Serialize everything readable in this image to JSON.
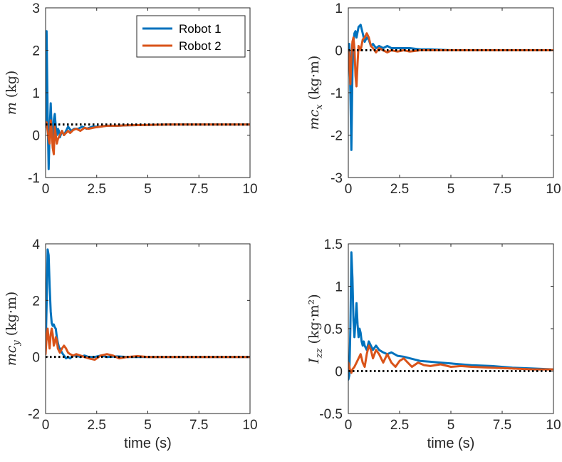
{
  "colors": {
    "robot1": "#0072BD",
    "robot2": "#D95319",
    "reference": "#000000",
    "axes": "#262626",
    "background": "#ffffff"
  },
  "legend": {
    "placement": "top-right",
    "entries": [
      "Robot 1",
      "Robot 2"
    ]
  },
  "chart_data": [
    {
      "type": "line",
      "id": "m",
      "title": "",
      "xlabel": "",
      "ylabel": {
        "sym": "m",
        "sub": "",
        "unit": "(kg)"
      },
      "xlim": [
        0,
        10
      ],
      "ylim": [
        -1,
        3
      ],
      "xticks": [
        "0",
        "2.5",
        "5",
        "7.5",
        "10"
      ],
      "yticks": [
        "-1",
        "0",
        "1",
        "2",
        "3"
      ],
      "grid": false,
      "reference": 0.25,
      "series": [
        {
          "name": "Robot 1",
          "x": [
            0,
            0.05,
            0.1,
            0.15,
            0.2,
            0.25,
            0.3,
            0.35,
            0.4,
            0.45,
            0.5,
            0.55,
            0.6,
            0.65,
            0.7,
            0.8,
            0.9,
            1.0,
            1.1,
            1.25,
            1.4,
            1.6,
            1.8,
            2.0,
            2.3,
            2.6,
            3.0,
            3.5,
            4.0,
            5.0,
            6.0,
            7.5,
            10.0
          ],
          "y": [
            0.3,
            2.45,
            0.5,
            -0.8,
            0.1,
            0.75,
            0.1,
            -0.15,
            0.35,
            0.5,
            0.2,
            0.0,
            0.15,
            0.1,
            -0.05,
            0.1,
            0.0,
            0.1,
            0.2,
            0.1,
            0.15,
            0.15,
            0.2,
            0.15,
            0.2,
            0.2,
            0.22,
            0.22,
            0.23,
            0.24,
            0.25,
            0.25,
            0.25
          ]
        },
        {
          "name": "Robot 2",
          "x": [
            0,
            0.05,
            0.1,
            0.15,
            0.2,
            0.25,
            0.3,
            0.35,
            0.4,
            0.45,
            0.5,
            0.55,
            0.6,
            0.7,
            0.8,
            0.9,
            1.0,
            1.1,
            1.2,
            1.35,
            1.5,
            1.7,
            1.9,
            2.1,
            2.4,
            2.7,
            3.0,
            3.5,
            4.0,
            5.0,
            6.0,
            7.5,
            10.0
          ],
          "y": [
            0.2,
            0.3,
            0.1,
            -0.1,
            -0.2,
            0.35,
            0.1,
            -0.3,
            -0.45,
            0.2,
            0.0,
            -0.2,
            -0.1,
            0.0,
            0.1,
            0.0,
            0.05,
            0.1,
            0.05,
            0.12,
            0.15,
            0.1,
            0.17,
            0.15,
            0.18,
            0.2,
            0.22,
            0.22,
            0.23,
            0.24,
            0.25,
            0.25,
            0.25
          ]
        }
      ]
    },
    {
      "type": "line",
      "id": "mcx",
      "title": "",
      "xlabel": "",
      "ylabel": {
        "sym": "mc",
        "sub": "x",
        "unit": "(kg·m)"
      },
      "xlim": [
        0,
        10
      ],
      "ylim": [
        -3,
        1
      ],
      "xticks": [
        "0",
        "2.5",
        "5",
        "7.5",
        "10"
      ],
      "yticks": [
        "-3",
        "-2",
        "-1",
        "0",
        "1"
      ],
      "grid": false,
      "reference": 0.0,
      "series": [
        {
          "name": "Robot 1",
          "x": [
            0,
            0.05,
            0.1,
            0.15,
            0.2,
            0.25,
            0.3,
            0.35,
            0.4,
            0.5,
            0.6,
            0.7,
            0.8,
            0.9,
            1.0,
            1.1,
            1.2,
            1.35,
            1.5,
            1.7,
            1.9,
            2.1,
            2.4,
            2.7,
            3.0,
            3.5,
            4.0,
            5.0,
            7.5,
            10.0
          ],
          "y": [
            0.1,
            0.15,
            -1.0,
            -2.35,
            -0.5,
            0.2,
            0.4,
            0.45,
            0.3,
            0.55,
            0.6,
            0.4,
            0.2,
            0.3,
            0.25,
            0.1,
            0.15,
            0.05,
            0.1,
            0.05,
            0.1,
            0.05,
            0.05,
            0.05,
            0.05,
            0.02,
            0.02,
            0.0,
            0.0,
            0.0
          ]
        },
        {
          "name": "Robot 2",
          "x": [
            0,
            0.05,
            0.1,
            0.15,
            0.2,
            0.25,
            0.3,
            0.35,
            0.4,
            0.45,
            0.5,
            0.55,
            0.6,
            0.7,
            0.8,
            0.9,
            1.0,
            1.1,
            1.2,
            1.35,
            1.5,
            1.7,
            1.9,
            2.1,
            2.4,
            2.7,
            3.0,
            3.5,
            4.0,
            5.0,
            7.5,
            10.0
          ],
          "y": [
            0.0,
            -0.2,
            -0.8,
            -0.2,
            0.2,
            0.3,
            0.05,
            -0.6,
            -0.85,
            -0.3,
            0.1,
            0.05,
            0.0,
            0.25,
            0.3,
            0.4,
            0.3,
            0.1,
            0.05,
            -0.05,
            0.05,
            0.0,
            -0.05,
            0.0,
            -0.03,
            0.0,
            -0.03,
            0.0,
            0.0,
            0.0,
            0.0,
            0.0
          ]
        }
      ]
    },
    {
      "type": "line",
      "id": "mcy",
      "title": "",
      "xlabel": "time (s)",
      "ylabel": {
        "sym": "mc",
        "sub": "y",
        "unit": "(kg·m)"
      },
      "xlim": [
        0,
        10
      ],
      "ylim": [
        -2,
        4
      ],
      "xticks": [
        "0",
        "2.5",
        "5",
        "7.5",
        "10"
      ],
      "yticks": [
        "-2",
        "0",
        "2",
        "4"
      ],
      "grid": false,
      "reference": 0.0,
      "series": [
        {
          "name": "Robot 1",
          "x": [
            0,
            0.05,
            0.1,
            0.15,
            0.2,
            0.25,
            0.3,
            0.35,
            0.4,
            0.45,
            0.5,
            0.55,
            0.6,
            0.65,
            0.7,
            0.8,
            0.9,
            1.0,
            1.1,
            1.2,
            1.35,
            1.5,
            1.7,
            1.9,
            2.1,
            2.4,
            2.7,
            3.0,
            3.5,
            4.0,
            5.0,
            6.0,
            7.5,
            10.0
          ],
          "y": [
            0.2,
            1.8,
            3.8,
            3.6,
            2.5,
            1.6,
            1.2,
            1.1,
            1.15,
            1.05,
            1.0,
            0.7,
            0.5,
            0.35,
            0.3,
            0.15,
            0.05,
            -0.05,
            0.0,
            -0.05,
            0.05,
            0.05,
            0.0,
            0.05,
            0.0,
            0.0,
            0.05,
            0.0,
            0.02,
            0.0,
            0.0,
            0.0,
            0.0,
            0.0
          ]
        },
        {
          "name": "Robot 2",
          "x": [
            0,
            0.05,
            0.1,
            0.15,
            0.2,
            0.25,
            0.3,
            0.35,
            0.4,
            0.45,
            0.5,
            0.55,
            0.6,
            0.7,
            0.8,
            0.9,
            1.0,
            1.1,
            1.2,
            1.35,
            1.5,
            1.7,
            1.9,
            2.1,
            2.4,
            2.7,
            3.0,
            3.3,
            3.6,
            4.0,
            4.5,
            5.0,
            6.0,
            7.5,
            10.0
          ],
          "y": [
            0.1,
            0.7,
            1.0,
            0.6,
            0.3,
            0.8,
            1.0,
            0.8,
            0.4,
            0.5,
            0.7,
            0.6,
            0.3,
            0.15,
            0.3,
            0.4,
            0.3,
            0.15,
            0.1,
            0.05,
            0.1,
            0.05,
            0.0,
            -0.05,
            -0.1,
            0.05,
            0.1,
            0.05,
            -0.05,
            0.0,
            0.03,
            0.0,
            0.0,
            0.0,
            0.0
          ]
        }
      ]
    },
    {
      "type": "line",
      "id": "izz",
      "title": "",
      "xlabel": "time (s)",
      "ylabel": {
        "sym": "I",
        "sub": "zz",
        "unit": "(kg·m²)"
      },
      "xlim": [
        0,
        10
      ],
      "ylim": [
        -0.5,
        1.5
      ],
      "xticks": [
        "0",
        "2.5",
        "5",
        "7.5",
        "10"
      ],
      "yticks": [
        "-0.5",
        "0",
        "0.5",
        "1",
        "1.5"
      ],
      "grid": false,
      "reference": 0.0,
      "series": [
        {
          "name": "Robot 1",
          "x": [
            0,
            0.05,
            0.1,
            0.15,
            0.2,
            0.25,
            0.3,
            0.35,
            0.4,
            0.45,
            0.5,
            0.55,
            0.6,
            0.65,
            0.7,
            0.75,
            0.8,
            0.9,
            1.0,
            1.1,
            1.2,
            1.35,
            1.5,
            1.7,
            1.9,
            2.1,
            2.4,
            2.7,
            3.0,
            3.5,
            4.0,
            4.5,
            5.0,
            6.0,
            7.0,
            8.0,
            9.0,
            10.0
          ],
          "y": [
            -0.1,
            -0.05,
            0.5,
            1.4,
            1.1,
            0.6,
            0.4,
            0.6,
            0.8,
            0.55,
            0.4,
            0.5,
            0.45,
            0.35,
            0.3,
            0.35,
            0.3,
            0.25,
            0.35,
            0.3,
            0.25,
            0.3,
            0.25,
            0.22,
            0.2,
            0.22,
            0.18,
            0.17,
            0.15,
            0.12,
            0.11,
            0.1,
            0.09,
            0.07,
            0.06,
            0.04,
            0.03,
            0.02
          ]
        },
        {
          "name": "Robot 2",
          "x": [
            0,
            0.05,
            0.1,
            0.15,
            0.2,
            0.3,
            0.4,
            0.5,
            0.6,
            0.7,
            0.8,
            0.9,
            1.0,
            1.1,
            1.2,
            1.35,
            1.5,
            1.7,
            1.9,
            2.1,
            2.3,
            2.5,
            2.7,
            2.9,
            3.1,
            3.4,
            3.7,
            4.0,
            4.5,
            5.0,
            5.5,
            6.0,
            7.0,
            8.0,
            9.0,
            10.0
          ],
          "y": [
            0.1,
            0.05,
            0.0,
            -0.02,
            0.02,
            0.05,
            0.1,
            0.15,
            0.2,
            0.1,
            0.05,
            0.2,
            0.3,
            0.25,
            0.15,
            0.25,
            0.2,
            0.1,
            0.2,
            0.1,
            0.05,
            0.12,
            0.15,
            0.1,
            0.05,
            0.1,
            0.07,
            0.06,
            0.08,
            0.05,
            0.06,
            0.05,
            0.04,
            0.03,
            0.02,
            0.02
          ]
        }
      ]
    }
  ]
}
